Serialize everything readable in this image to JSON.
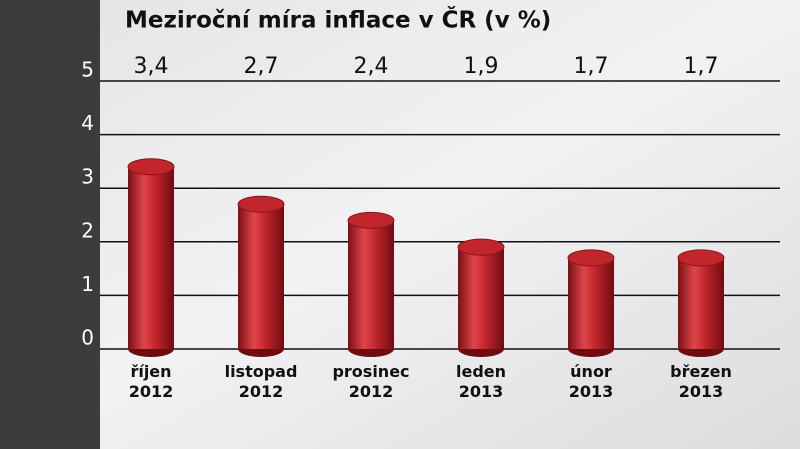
{
  "chart_data": {
    "type": "bar",
    "title": "Meziroční míra inflace v ČR (v %)",
    "categories": [
      "říjen 2012",
      "listopad 2012",
      "prosinec 2012",
      "leden 2013",
      "únor 2013",
      "březen 2013"
    ],
    "values": [
      3.4,
      2.7,
      2.4,
      1.9,
      1.7,
      1.7
    ],
    "value_labels": [
      "3,4",
      "2,7",
      "2,4",
      "1,9",
      "1,7",
      "1,7"
    ],
    "color": "#c0262c",
    "ylim": [
      0,
      5
    ],
    "yticks": [
      0,
      1,
      2,
      3,
      4,
      5
    ],
    "grid": true
  }
}
